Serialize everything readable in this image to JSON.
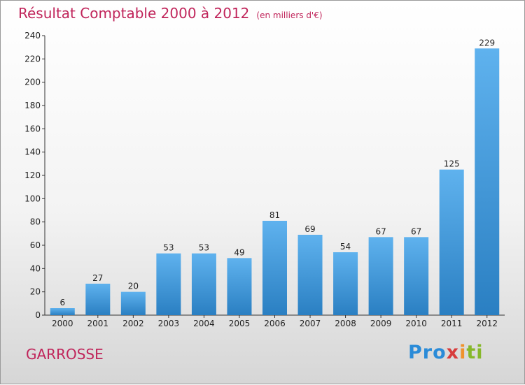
{
  "header": {
    "title": "Résultat Comptable 2000 à 2012",
    "unit": "(en milliers d'€)"
  },
  "footer": {
    "commune": "GARROSSE",
    "logo": [
      "Pro",
      "x",
      "i",
      "ti"
    ]
  },
  "colors": {
    "title": "#c0245a",
    "bar_light": "#5fb2ee",
    "bar_dark": "#2a7fc2",
    "axis": "#333333"
  },
  "chart_data": {
    "type": "bar",
    "title": "Résultat Comptable 2000 à 2012",
    "ylabel": "(en milliers d'€)",
    "xlabel": "",
    "categories": [
      "2000",
      "2001",
      "2002",
      "2003",
      "2004",
      "2005",
      "2006",
      "2007",
      "2008",
      "2009",
      "2010",
      "2011",
      "2012"
    ],
    "values": [
      6,
      27,
      20,
      53,
      53,
      49,
      81,
      69,
      54,
      67,
      67,
      125,
      229
    ],
    "ylim": [
      0,
      240
    ],
    "yticks": [
      0,
      20,
      40,
      60,
      80,
      100,
      120,
      140,
      160,
      180,
      200,
      220,
      240
    ],
    "grid": false,
    "data_labels": true
  }
}
